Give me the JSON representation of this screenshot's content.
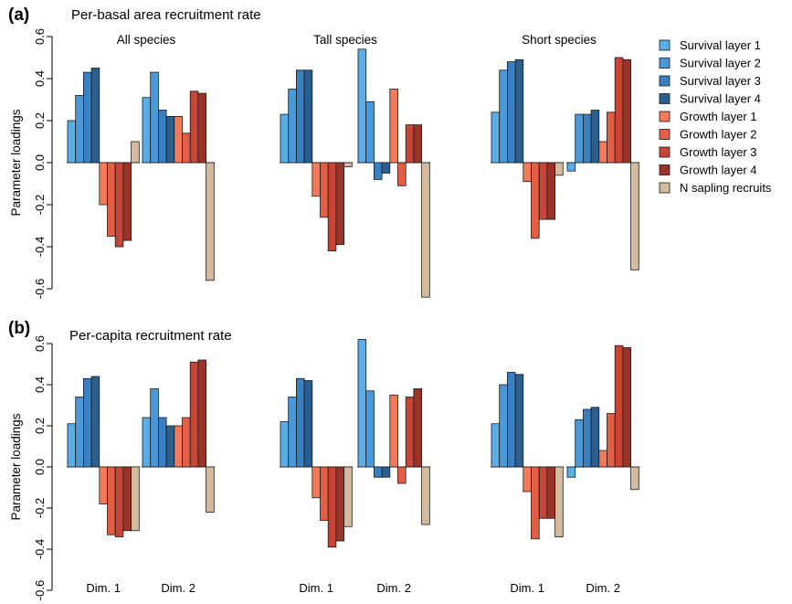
{
  "figure": {
    "ylabel": "Parameter loadings",
    "yticks": [
      "-0.6",
      "-0.4",
      "-0.2",
      "0.0",
      "0.2",
      "0.4",
      "0.6"
    ]
  },
  "legend": [
    {
      "label": "Survival layer 1",
      "color": "#5aaee8"
    },
    {
      "label": "Survival layer 2",
      "color": "#4a98d8"
    },
    {
      "label": "Survival layer 3",
      "color": "#3a7fc0"
    },
    {
      "label": "Survival layer 4",
      "color": "#2a5f90"
    },
    {
      "label": "Growth layer 1",
      "color": "#f27a5a"
    },
    {
      "label": "Growth layer 2",
      "color": "#e35e45"
    },
    {
      "label": "Growth layer 3",
      "color": "#c84434"
    },
    {
      "label": "Growth layer 4",
      "color": "#9a3428"
    },
    {
      "label": "N sapling recruits",
      "color": "#d4bb9f"
    }
  ],
  "chart_data": [
    {
      "type": "bar",
      "panel": "(a)",
      "title": "Per-basal area recruitment rate",
      "ylabel": "Parameter loadings",
      "ylim": [
        -0.6,
        0.6
      ],
      "series_names": [
        "Survival layer 1",
        "Survival layer 2",
        "Survival layer 3",
        "Survival layer 4",
        "Growth layer 1",
        "Growth layer 2",
        "Growth layer 3",
        "Growth layer 4",
        "N sapling recruits"
      ],
      "groups": [
        {
          "name": "All species",
          "dims": [
            {
              "label": "Dim. 1",
              "values": [
                0.2,
                0.32,
                0.43,
                0.45,
                -0.2,
                -0.35,
                -0.4,
                -0.37,
                0.1
              ]
            },
            {
              "label": "Dim. 2",
              "values": [
                0.31,
                0.43,
                0.25,
                0.22,
                0.22,
                0.14,
                0.34,
                0.33,
                -0.56
              ]
            }
          ]
        },
        {
          "name": "Tall species",
          "dims": [
            {
              "label": "Dim. 1",
              "values": [
                0.23,
                0.35,
                0.44,
                0.44,
                -0.16,
                -0.26,
                -0.42,
                -0.39,
                -0.02
              ]
            },
            {
              "label": "Dim. 2",
              "values": [
                0.54,
                0.29,
                -0.08,
                -0.05,
                0.35,
                -0.11,
                0.18,
                0.18,
                -0.64
              ]
            }
          ]
        },
        {
          "name": "Short species",
          "dims": [
            {
              "label": "Dim. 1",
              "values": [
                0.24,
                0.44,
                0.48,
                0.49,
                -0.09,
                -0.36,
                -0.27,
                -0.27,
                -0.06
              ]
            },
            {
              "label": "Dim. 2",
              "values": [
                -0.04,
                0.23,
                0.23,
                0.25,
                0.1,
                0.24,
                0.5,
                0.49,
                -0.51
              ]
            }
          ]
        }
      ]
    },
    {
      "type": "bar",
      "panel": "(b)",
      "title": "Per-capita recruitment rate",
      "ylabel": "Parameter loadings",
      "ylim": [
        -0.6,
        0.6
      ],
      "series_names": [
        "Survival layer 1",
        "Survival layer 2",
        "Survival layer 3",
        "Survival layer 4",
        "Growth layer 1",
        "Growth layer 2",
        "Growth layer 3",
        "Growth layer 4",
        "N sapling recruits"
      ],
      "groups": [
        {
          "name": "",
          "dims": [
            {
              "label": "Dim. 1",
              "values": [
                0.21,
                0.34,
                0.43,
                0.44,
                -0.18,
                -0.33,
                -0.34,
                -0.31,
                -0.31
              ]
            },
            {
              "label": "Dim. 2",
              "values": [
                0.24,
                0.38,
                0.24,
                0.2,
                0.2,
                0.24,
                0.51,
                0.52,
                -0.22
              ]
            }
          ]
        },
        {
          "name": "",
          "dims": [
            {
              "label": "Dim. 1",
              "values": [
                0.22,
                0.34,
                0.43,
                0.42,
                -0.15,
                -0.26,
                -0.39,
                -0.36,
                -0.29
              ]
            },
            {
              "label": "Dim. 2",
              "values": [
                0.62,
                0.37,
                -0.05,
                -0.05,
                0.35,
                -0.08,
                0.34,
                0.38,
                -0.28
              ]
            }
          ]
        },
        {
          "name": "",
          "dims": [
            {
              "label": "Dim. 1",
              "values": [
                0.21,
                0.4,
                0.46,
                0.45,
                -0.12,
                -0.35,
                -0.25,
                -0.25,
                -0.34
              ]
            },
            {
              "label": "Dim. 2",
              "values": [
                -0.05,
                0.23,
                0.28,
                0.29,
                0.08,
                0.26,
                0.59,
                0.58,
                -0.11
              ]
            }
          ]
        }
      ]
    }
  ]
}
